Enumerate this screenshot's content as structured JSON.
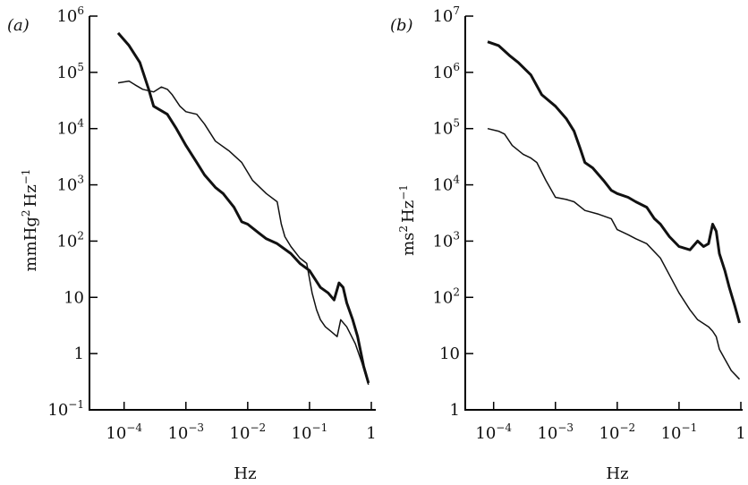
{
  "chart_data": [
    {
      "panel_label": "(a)",
      "type": "line",
      "xlabel": "Hz",
      "ylabel": "mmHg² Hz⁻¹",
      "xscale": "log",
      "yscale": "log",
      "xlim": [
        7e-05,
        1
      ],
      "ylim": [
        0.1,
        1000000
      ],
      "xticks": [
        {
          "value": 0.0001,
          "base": "10",
          "exp": "−4"
        },
        {
          "value": 0.001,
          "base": "10",
          "exp": "−3"
        },
        {
          "value": 0.01,
          "base": "10",
          "exp": "−2"
        },
        {
          "value": 0.1,
          "base": "10",
          "exp": "−1"
        },
        {
          "value": 1,
          "base": "1",
          "exp": ""
        }
      ],
      "yticks": [
        {
          "value": 0.1,
          "base": "10",
          "exp": "−1"
        },
        {
          "value": 1,
          "base": "1",
          "exp": ""
        },
        {
          "value": 10,
          "base": "10",
          "exp": ""
        },
        {
          "value": 100,
          "base": "10",
          "exp": "2"
        },
        {
          "value": 1000,
          "base": "10",
          "exp": "3"
        },
        {
          "value": 10000,
          "base": "10",
          "exp": "4"
        },
        {
          "value": 100000,
          "base": "10",
          "exp": "5"
        },
        {
          "value": 1000000,
          "base": "10",
          "exp": "6"
        }
      ],
      "grid": false,
      "legend": "none",
      "series": [
        {
          "weight": "thick",
          "points": [
            [
              8e-05,
              500000
            ],
            [
              0.00012,
              300000
            ],
            [
              0.00018,
              150000
            ],
            [
              0.00025,
              50000
            ],
            [
              0.0003,
              25000
            ],
            [
              0.0005,
              18000
            ],
            [
              0.0007,
              10000
            ],
            [
              0.001,
              5000
            ],
            [
              0.0015,
              2500
            ],
            [
              0.002,
              1500
            ],
            [
              0.003,
              900
            ],
            [
              0.004,
              700
            ],
            [
              0.006,
              400
            ],
            [
              0.008,
              220
            ],
            [
              0.01,
              200
            ],
            [
              0.015,
              140
            ],
            [
              0.02,
              110
            ],
            [
              0.03,
              90
            ],
            [
              0.05,
              60
            ],
            [
              0.07,
              40
            ],
            [
              0.1,
              30
            ],
            [
              0.15,
              15
            ],
            [
              0.2,
              12
            ],
            [
              0.25,
              9
            ],
            [
              0.3,
              18
            ],
            [
              0.35,
              15
            ],
            [
              0.4,
              8
            ],
            [
              0.5,
              4
            ],
            [
              0.6,
              2
            ],
            [
              0.75,
              0.6
            ],
            [
              0.9,
              0.3
            ]
          ]
        },
        {
          "weight": "thin",
          "points": [
            [
              8e-05,
              65000
            ],
            [
              0.00012,
              70000
            ],
            [
              0.00015,
              60000
            ],
            [
              0.0002,
              50000
            ],
            [
              0.0003,
              45000
            ],
            [
              0.0004,
              55000
            ],
            [
              0.0005,
              50000
            ],
            [
              0.0006,
              40000
            ],
            [
              0.0008,
              25000
            ],
            [
              0.001,
              20000
            ],
            [
              0.0015,
              18000
            ],
            [
              0.002,
              12000
            ],
            [
              0.003,
              6000
            ],
            [
              0.005,
              4000
            ],
            [
              0.008,
              2500
            ],
            [
              0.012,
              1200
            ],
            [
              0.02,
              700
            ],
            [
              0.03,
              500
            ],
            [
              0.035,
              200
            ],
            [
              0.04,
              120
            ],
            [
              0.05,
              80
            ],
            [
              0.07,
              50
            ],
            [
              0.09,
              40
            ],
            [
              0.11,
              12
            ],
            [
              0.13,
              6
            ],
            [
              0.15,
              4
            ],
            [
              0.18,
              3
            ],
            [
              0.22,
              2.5
            ],
            [
              0.28,
              2
            ],
            [
              0.32,
              4
            ],
            [
              0.4,
              3
            ],
            [
              0.55,
              1.5
            ],
            [
              0.7,
              0.7
            ],
            [
              0.9,
              0.28
            ]
          ]
        }
      ]
    },
    {
      "panel_label": "(b)",
      "type": "line",
      "xlabel": "Hz",
      "ylabel": "ms² Hz⁻¹",
      "xscale": "log",
      "yscale": "log",
      "xlim": [
        7e-05,
        1
      ],
      "ylim": [
        1,
        10000000
      ],
      "xticks": [
        {
          "value": 0.0001,
          "base": "10",
          "exp": "−4"
        },
        {
          "value": 0.001,
          "base": "10",
          "exp": "−3"
        },
        {
          "value": 0.01,
          "base": "10",
          "exp": "−2"
        },
        {
          "value": 0.1,
          "base": "10",
          "exp": "−1"
        },
        {
          "value": 1,
          "base": "1",
          "exp": ""
        }
      ],
      "yticks": [
        {
          "value": 1,
          "base": "1",
          "exp": ""
        },
        {
          "value": 10,
          "base": "10",
          "exp": ""
        },
        {
          "value": 100,
          "base": "10",
          "exp": "2"
        },
        {
          "value": 1000,
          "base": "10",
          "exp": "3"
        },
        {
          "value": 10000,
          "base": "10",
          "exp": "4"
        },
        {
          "value": 100000,
          "base": "10",
          "exp": "5"
        },
        {
          "value": 1000000,
          "base": "10",
          "exp": "6"
        },
        {
          "value": 10000000,
          "base": "10",
          "exp": "7"
        }
      ],
      "grid": false,
      "legend": "none",
      "series": [
        {
          "weight": "thick",
          "points": [
            [
              8e-05,
              3500000
            ],
            [
              0.00012,
              3000000
            ],
            [
              0.00018,
              2000000
            ],
            [
              0.00025,
              1500000
            ],
            [
              0.0004,
              900000
            ],
            [
              0.0006,
              400000
            ],
            [
              0.001,
              250000
            ],
            [
              0.0015,
              150000
            ],
            [
              0.002,
              90000
            ],
            [
              0.0025,
              45000
            ],
            [
              0.003,
              25000
            ],
            [
              0.004,
              20000
            ],
            [
              0.006,
              12000
            ],
            [
              0.008,
              8000
            ],
            [
              0.01,
              7000
            ],
            [
              0.015,
              6000
            ],
            [
              0.02,
              5000
            ],
            [
              0.03,
              4000
            ],
            [
              0.04,
              2500
            ],
            [
              0.05,
              2000
            ],
            [
              0.07,
              1200
            ],
            [
              0.1,
              800
            ],
            [
              0.15,
              700
            ],
            [
              0.2,
              1000
            ],
            [
              0.25,
              800
            ],
            [
              0.3,
              900
            ],
            [
              0.35,
              2000
            ],
            [
              0.4,
              1500
            ],
            [
              0.45,
              600
            ],
            [
              0.55,
              300
            ],
            [
              0.65,
              150
            ],
            [
              0.8,
              70
            ],
            [
              0.95,
              35
            ]
          ]
        },
        {
          "weight": "thin",
          "points": [
            [
              8e-05,
              100000
            ],
            [
              0.00012,
              90000
            ],
            [
              0.00015,
              80000
            ],
            [
              0.0002,
              50000
            ],
            [
              0.0003,
              35000
            ],
            [
              0.0004,
              30000
            ],
            [
              0.0005,
              25000
            ],
            [
              0.0007,
              12000
            ],
            [
              0.001,
              6000
            ],
            [
              0.0015,
              5500
            ],
            [
              0.002,
              5000
            ],
            [
              0.003,
              3500
            ],
            [
              0.005,
              3000
            ],
            [
              0.008,
              2500
            ],
            [
              0.01,
              1600
            ],
            [
              0.015,
              1300
            ],
            [
              0.02,
              1100
            ],
            [
              0.03,
              900
            ],
            [
              0.05,
              500
            ],
            [
              0.07,
              250
            ],
            [
              0.1,
              120
            ],
            [
              0.15,
              60
            ],
            [
              0.2,
              40
            ],
            [
              0.3,
              30
            ],
            [
              0.35,
              25
            ],
            [
              0.4,
              20
            ],
            [
              0.45,
              12
            ],
            [
              0.55,
              8
            ],
            [
              0.7,
              5
            ],
            [
              0.85,
              4
            ],
            [
              0.95,
              3.5
            ]
          ]
        }
      ]
    }
  ]
}
